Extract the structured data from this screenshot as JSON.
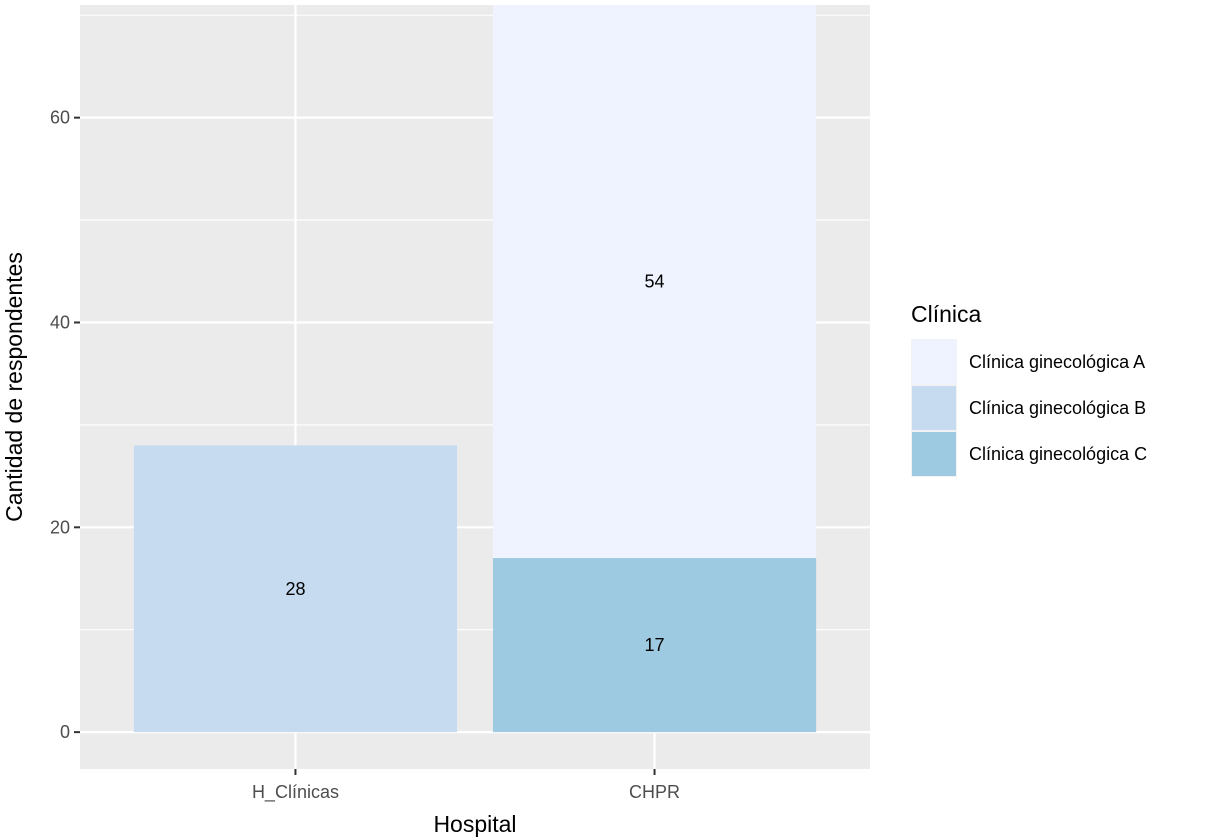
{
  "chart_data": {
    "type": "bar",
    "stacked": true,
    "categories": [
      "H_Clínicas",
      "CHPR"
    ],
    "xlabel": "Hospital",
    "ylabel": "Cantidad de respondentes",
    "ylim": [
      -3.6,
      71
    ],
    "yticks": [
      0,
      20,
      40,
      60
    ],
    "grid": true,
    "legend_title": "Clínica",
    "legend_position": "right",
    "series": [
      {
        "name": "Clínica ginecológica A",
        "color": "#EFF3FF",
        "values": [
          0,
          54
        ]
      },
      {
        "name": "Clínica ginecológica B",
        "color": "#C6DBEF",
        "values": [
          28,
          0
        ]
      },
      {
        "name": "Clínica ginecológica C",
        "color": "#9ECAE1",
        "values": [
          0,
          17
        ]
      }
    ],
    "stack_order": [
      "Clínica ginecológica C",
      "Clínica ginecológica B",
      "Clínica ginecológica A"
    ]
  }
}
